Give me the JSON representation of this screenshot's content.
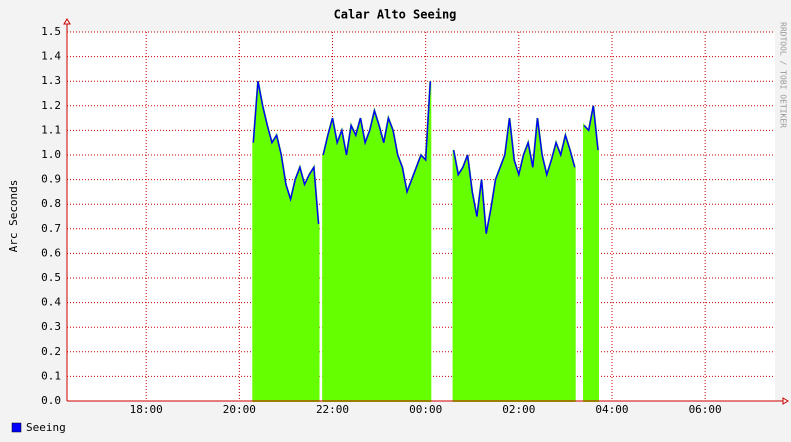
{
  "chart_data": {
    "type": "area",
    "title": "Calar Alto Seeing",
    "ylabel": "Arc Seconds",
    "watermark": "RRDTOOL / TOBI OETIKER",
    "legend": "bottom-left",
    "grid": true,
    "xlim": [
      16.3,
      31.5
    ],
    "ylim": [
      0,
      1.5
    ],
    "xticks": [
      {
        "value": 18,
        "label": "18:00"
      },
      {
        "value": 20,
        "label": "20:00"
      },
      {
        "value": 22,
        "label": "22:00"
      },
      {
        "value": 24,
        "label": "00:00"
      },
      {
        "value": 26,
        "label": "02:00"
      },
      {
        "value": 28,
        "label": "04:00"
      },
      {
        "value": 30,
        "label": "06:00"
      }
    ],
    "yticks": [
      {
        "value": 0,
        "label": "0.0"
      },
      0.1,
      0.2,
      0.3,
      0.4,
      0.5,
      0.6,
      0.7,
      0.8,
      0.9,
      {
        "value": 1,
        "label": "1.0"
      },
      1.1,
      1.2,
      1.3,
      1.4,
      1.5
    ],
    "x": [
      20.3,
      20.4,
      20.5,
      20.6,
      20.7,
      20.8,
      20.9,
      21.0,
      21.1,
      21.2,
      21.3,
      21.4,
      21.5,
      21.6,
      21.7,
      21.75,
      21.8,
      21.9,
      22.0,
      22.1,
      22.2,
      22.3,
      22.4,
      22.5,
      22.6,
      22.7,
      22.8,
      22.9,
      23.0,
      23.1,
      23.2,
      23.3,
      23.4,
      23.5,
      23.6,
      23.7,
      23.8,
      23.9,
      24.0,
      24.1,
      24.3,
      24.6,
      24.7,
      24.8,
      24.9,
      25.0,
      25.1,
      25.2,
      25.3,
      25.4,
      25.5,
      25.6,
      25.7,
      25.8,
      25.9,
      26.0,
      26.1,
      26.2,
      26.3,
      26.4,
      26.5,
      26.6,
      26.7,
      26.8,
      26.9,
      27.0,
      27.1,
      27.2,
      27.3,
      27.4,
      27.5,
      27.6,
      27.7
    ],
    "series": [
      {
        "name": "Seeing",
        "color": "#0000ff",
        "fill": "#66ff00",
        "values": [
          1.05,
          1.3,
          1.2,
          1.12,
          1.05,
          1.08,
          1.0,
          0.88,
          0.82,
          0.9,
          0.95,
          0.88,
          0.92,
          0.95,
          0.72,
          null,
          1.0,
          1.08,
          1.15,
          1.05,
          1.1,
          1.0,
          1.12,
          1.08,
          1.15,
          1.05,
          1.1,
          1.18,
          1.12,
          1.05,
          1.15,
          1.1,
          1.0,
          0.95,
          0.85,
          0.9,
          0.95,
          1.0,
          0.98,
          1.3,
          null,
          1.02,
          0.92,
          0.95,
          1.0,
          0.85,
          0.75,
          0.9,
          0.68,
          0.78,
          0.9,
          0.95,
          1.0,
          1.15,
          0.98,
          0.92,
          1.0,
          1.05,
          0.95,
          1.15,
          1.0,
          0.92,
          0.98,
          1.05,
          1.0,
          1.08,
          1.02,
          0.95,
          null,
          1.12,
          1.1,
          1.2,
          1.02
        ]
      }
    ]
  }
}
